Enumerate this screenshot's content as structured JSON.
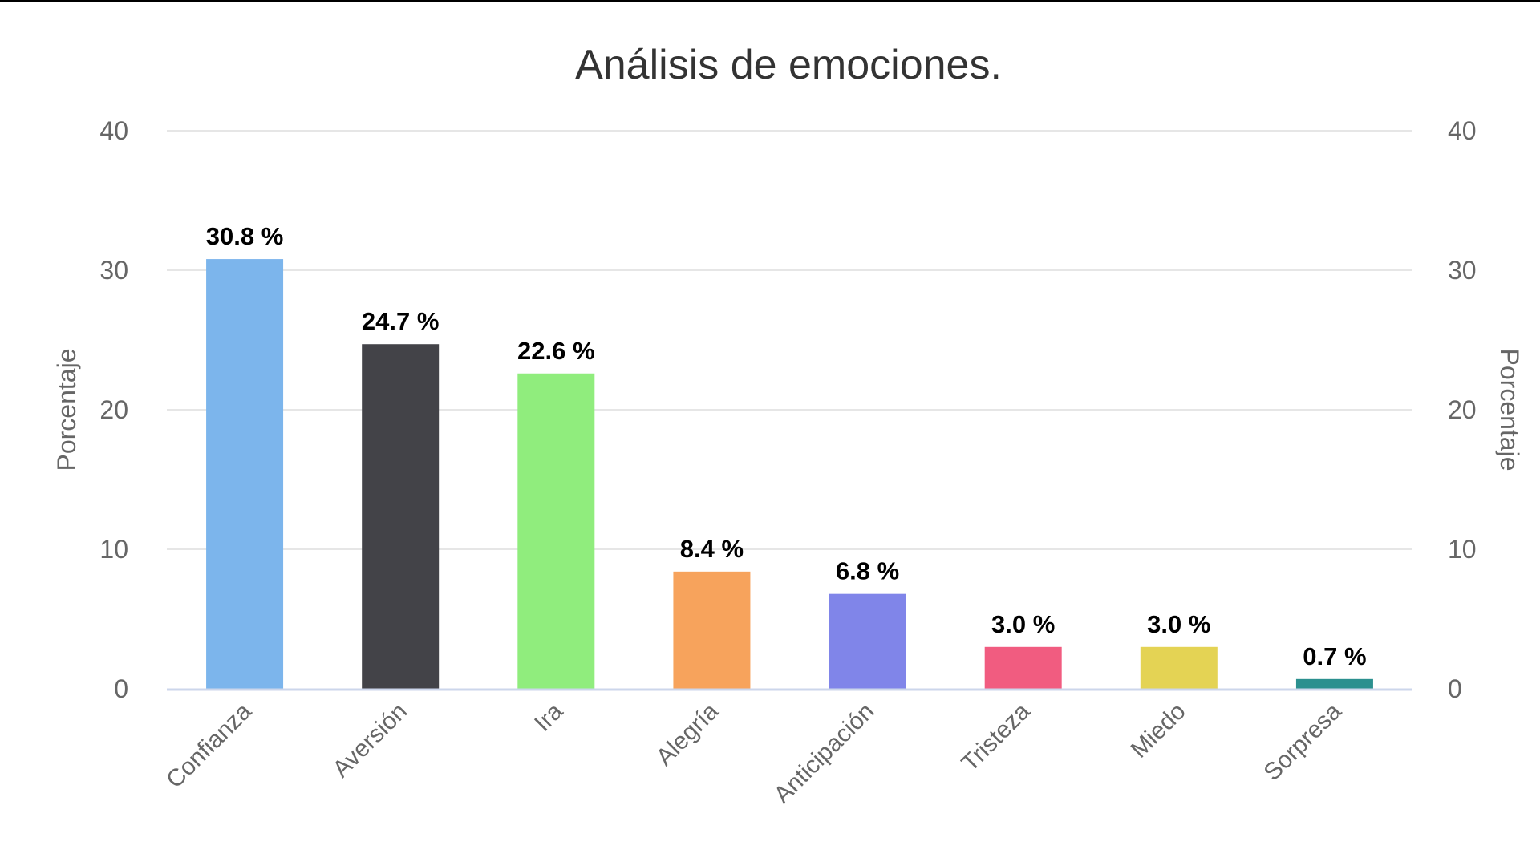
{
  "chart_data": {
    "type": "bar",
    "title": "Análisis de emociones.",
    "xlabel": "",
    "ylabel": "Porcentaje",
    "ylabel_right": "Porcentaje",
    "ylim": [
      0,
      40
    ],
    "yticks": [
      "0",
      "10",
      "20",
      "30",
      "40"
    ],
    "grid": true,
    "categories": [
      "Confianza",
      "Aversión",
      "Ira",
      "Alegría",
      "Anticipación",
      "Tristeza",
      "Miedo",
      "Sorpresa"
    ],
    "values": [
      30.8,
      24.7,
      22.6,
      8.4,
      6.8,
      3.0,
      3.0,
      0.7
    ],
    "data_labels": [
      "30.8 %",
      "24.7 %",
      "22.6 %",
      "8.4 %",
      "6.8 %",
      "3.0 %",
      "3.0 %",
      "0.7 %"
    ],
    "colors": [
      "#7cb5ec",
      "#434348",
      "#90ed7d",
      "#f7a35c",
      "#8085e9",
      "#f15c80",
      "#e4d354",
      "#2b908f"
    ]
  }
}
